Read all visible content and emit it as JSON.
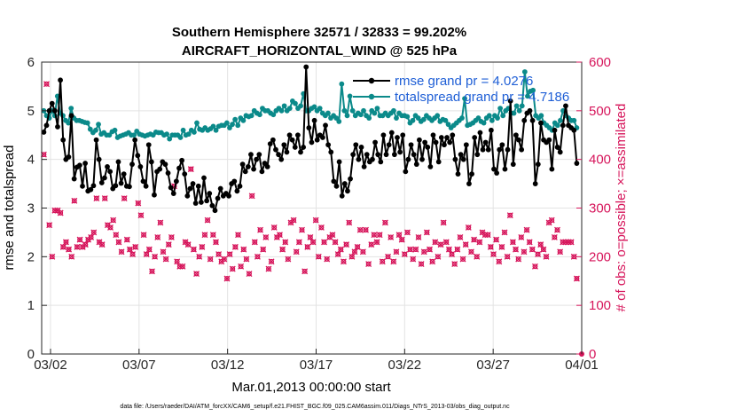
{
  "chart_data": {
    "type": "line",
    "title_line1": "Southern Hemisphere 32571 / 32833 = 99.202%",
    "title_line2": "AIRCRAFT_HORIZONTAL_WIND @ 525 hPa",
    "xlabel": "Mar.01,2013 00:00:00 start",
    "ylabel_left": "rmse and totalspread",
    "ylabel_right": "# of obs: o=possible; ×=assimilated",
    "footer": "data file: /Users/raeder/DAI/ATM_forcXX/CAM6_setup/f.e21.FHIST_BGC.f09_025.CAM6assim.011/Diags_NTrS_2013-03/obs_diag_output.nc",
    "x_range_days": [
      0.5,
      31.0
    ],
    "ylim_left": [
      0,
      6
    ],
    "ylim_right": [
      0,
      600
    ],
    "x_ticks": [
      {
        "day": 1.0,
        "label": "03/02"
      },
      {
        "day": 6.0,
        "label": "03/07"
      },
      {
        "day": 11.0,
        "label": "03/12"
      },
      {
        "day": 16.0,
        "label": "03/17"
      },
      {
        "day": 21.0,
        "label": "03/22"
      },
      {
        "day": 26.0,
        "label": "03/27"
      },
      {
        "day": 31.0,
        "label": "04/01"
      }
    ],
    "y_ticks_left": [
      "0",
      "1",
      "2",
      "3",
      "4",
      "5",
      "6"
    ],
    "y_ticks_right": [
      "0",
      "100",
      "200",
      "300",
      "400",
      "500",
      "600"
    ],
    "colors": {
      "rmse": "#000000",
      "totalspread": "#0b8a8a",
      "obs": "#d6145a",
      "legend_text": "#1f5fd6",
      "grid": "#e3e3e3"
    },
    "series": [
      {
        "name": "rmse",
        "legend": "rmse grand pr = 4.0276",
        "axis": "left",
        "values": [
          4.56,
          4.7,
          5.0,
          5.15,
          5.0,
          4.67,
          5.63,
          4.4,
          4.0,
          4.05,
          4.9,
          3.6,
          3.84,
          3.88,
          3.45,
          3.92,
          3.35,
          3.38,
          3.46,
          4.4,
          4.0,
          3.52,
          3.62,
          3.85,
          3.75,
          3.4,
          3.46,
          3.95,
          3.51,
          3.7,
          3.45,
          3.44,
          3.9,
          4.4,
          4.08,
          3.85,
          3.55,
          3.45,
          4.3,
          3.95,
          3.27,
          3.75,
          3.8,
          3.95,
          3.9,
          3.72,
          3.42,
          3.3,
          3.55,
          3.82,
          3.98,
          3.7,
          3.25,
          3.4,
          3.5,
          3.1,
          3.45,
          3.12,
          3.62,
          3.15,
          3.3,
          3.05,
          2.95,
          3.2,
          3.4,
          3.25,
          3.3,
          3.25,
          3.5,
          3.55,
          3.35,
          3.45,
          3.9,
          3.75,
          3.85,
          4.1,
          3.8,
          4.0,
          4.1,
          3.75,
          3.92,
          3.85,
          4.32,
          4.4,
          4.2,
          4.1,
          4.0,
          4.3,
          4.15,
          4.5,
          4.4,
          4.25,
          4.5,
          4.15,
          4.25,
          5.9,
          4.65,
          4.35,
          4.8,
          4.4,
          4.5,
          4.45,
          4.7,
          4.3,
          4.15,
          3.55,
          3.45,
          3.95,
          3.25,
          3.5,
          3.35,
          3.6,
          4.1,
          4.3,
          4.0,
          4.25,
          3.85,
          4.1,
          3.95,
          4.0,
          4.35,
          4.1,
          3.95,
          4.5,
          4.1,
          4.3,
          4.55,
          4.1,
          4.45,
          4.15,
          4.5,
          3.75,
          4.0,
          4.3,
          4.1,
          3.9,
          4.4,
          4.0,
          4.35,
          4.25,
          3.85,
          4.5,
          4.35,
          3.95,
          4.45,
          4.3,
          4.45,
          4.35,
          4.5,
          4.0,
          3.7,
          4.1,
          4.0,
          4.3,
          3.5,
          3.7,
          4.45,
          4.1,
          4.55,
          4.2,
          4.35,
          4.2,
          4.6,
          3.8,
          3.72,
          4.2,
          4.3,
          3.8,
          4.2,
          5.2,
          3.9,
          4.5,
          4.4,
          4.2,
          4.8,
          4.95,
          5.0,
          4.8,
          3.5,
          3.9,
          4.75,
          4.4,
          4.35,
          4.4,
          3.8,
          4.6,
          4.25,
          4.15,
          4.7,
          5.1,
          4.7,
          4.65,
          4.6,
          3.92
        ]
      },
      {
        "name": "totalspread",
        "legend": "totalspread grand pr = 4.7186",
        "axis": "left",
        "values": [
          5.0,
          4.9,
          4.85,
          5.0,
          4.9,
          5.3,
          4.95,
          4.9,
          4.8,
          4.75,
          5.05,
          4.85,
          4.8,
          4.8,
          4.78,
          4.76,
          4.75,
          4.62,
          4.55,
          4.6,
          4.72,
          4.52,
          4.55,
          4.5,
          4.5,
          4.57,
          4.6,
          4.45,
          4.48,
          4.5,
          4.52,
          4.55,
          4.5,
          4.5,
          4.58,
          4.52,
          4.5,
          4.48,
          4.5,
          4.52,
          4.5,
          4.56,
          4.55,
          4.55,
          4.5,
          4.52,
          4.42,
          4.5,
          4.5,
          4.5,
          4.45,
          4.6,
          4.5,
          4.52,
          4.6,
          4.56,
          4.75,
          4.62,
          4.6,
          4.65,
          4.6,
          4.63,
          4.68,
          4.6,
          4.68,
          4.7,
          4.7,
          4.75,
          4.65,
          4.72,
          4.82,
          4.7,
          4.85,
          4.8,
          4.9,
          4.88,
          4.9,
          5.0,
          4.95,
          4.92,
          5.05,
          5.0,
          5.0,
          4.95,
          4.92,
          5.0,
          5.05,
          5.0,
          5.1,
          5.0,
          5.05,
          5.2,
          5.15,
          5.05,
          5.1,
          5.35,
          5.0,
          5.0,
          5.05,
          5.08,
          5.0,
          5.05,
          4.95,
          4.9,
          4.95,
          4.85,
          4.9,
          4.85,
          4.78,
          5.55,
          5.0,
          4.9,
          5.3,
          5.0,
          4.9,
          4.95,
          4.92,
          5.0,
          4.9,
          4.85,
          5.0,
          4.95,
          5.05,
          4.9,
          4.9,
          4.95,
          4.9,
          4.95,
          5.0,
          4.85,
          4.95,
          4.9,
          4.9,
          4.88,
          4.75,
          4.8,
          4.9,
          4.85,
          4.78,
          4.82,
          4.9,
          4.85,
          4.8,
          4.85,
          4.9,
          4.78,
          4.82,
          4.8,
          4.72,
          4.65,
          4.7,
          4.75,
          4.8,
          4.85,
          5.25,
          4.7,
          4.72,
          4.75,
          4.8,
          4.85,
          4.78,
          4.75,
          4.85,
          4.9,
          4.8,
          4.9,
          4.85,
          5.05,
          4.9,
          5.0,
          5.05,
          4.95,
          4.95,
          5.1,
          5.0,
          5.1,
          5.8,
          5.3,
          5.4,
          5.42,
          4.9,
          4.85,
          4.9,
          4.75,
          4.7,
          4.65,
          4.6,
          4.75,
          4.7,
          4.8,
          5.0,
          4.9,
          4.85,
          4.8,
          4.8,
          4.65
        ]
      }
    ],
    "obs_possible": [
      410,
      555,
      265,
      200,
      295,
      295,
      290,
      220,
      230,
      215,
      200,
      315,
      220,
      235,
      220,
      225,
      235,
      240,
      250,
      320,
      230,
      225,
      320,
      265,
      260,
      275,
      245,
      230,
      210,
      320,
      235,
      215,
      205,
      220,
      310,
      285,
      245,
      205,
      215,
      170,
      200,
      240,
      270,
      210,
      195,
      225,
      240,
      345,
      190,
      180,
      180,
      230,
      225,
      380,
      215,
      165,
      200,
      220,
      245,
      275,
      195,
      245,
      230,
      205,
      190,
      195,
      155,
      205,
      175,
      220,
      245,
      180,
      215,
      195,
      165,
      325,
      230,
      200,
      255,
      215,
      240,
      175,
      190,
      260,
      240,
      245,
      215,
      230,
      195,
      270,
      275,
      210,
      230,
      255,
      170,
      220,
      240,
      230,
      275,
      200,
      260,
      230,
      195,
      240,
      245,
      230,
      205,
      215,
      190,
      225,
      270,
      200,
      210,
      220,
      255,
      210,
      255,
      185,
      225,
      245,
      230,
      245,
      190,
      270,
      200,
      240,
      190,
      210,
      245,
      235,
      205,
      250,
      215,
      195,
      215,
      240,
      185,
      210,
      250,
      215,
      190,
      230,
      200,
      225,
      270,
      230,
      215,
      205,
      185,
      215,
      240,
      195,
      225,
      260,
      210,
      235,
      200,
      230,
      250,
      245,
      245,
      220,
      205,
      235,
      190,
      220,
      250,
      200,
      285,
      230,
      215,
      195,
      240,
      210,
      255,
      230,
      215,
      180,
      205,
      225,
      215,
      200,
      270,
      275,
      240,
      255,
      210,
      230,
      230,
      230,
      230,
      200,
      155
    ]
  }
}
